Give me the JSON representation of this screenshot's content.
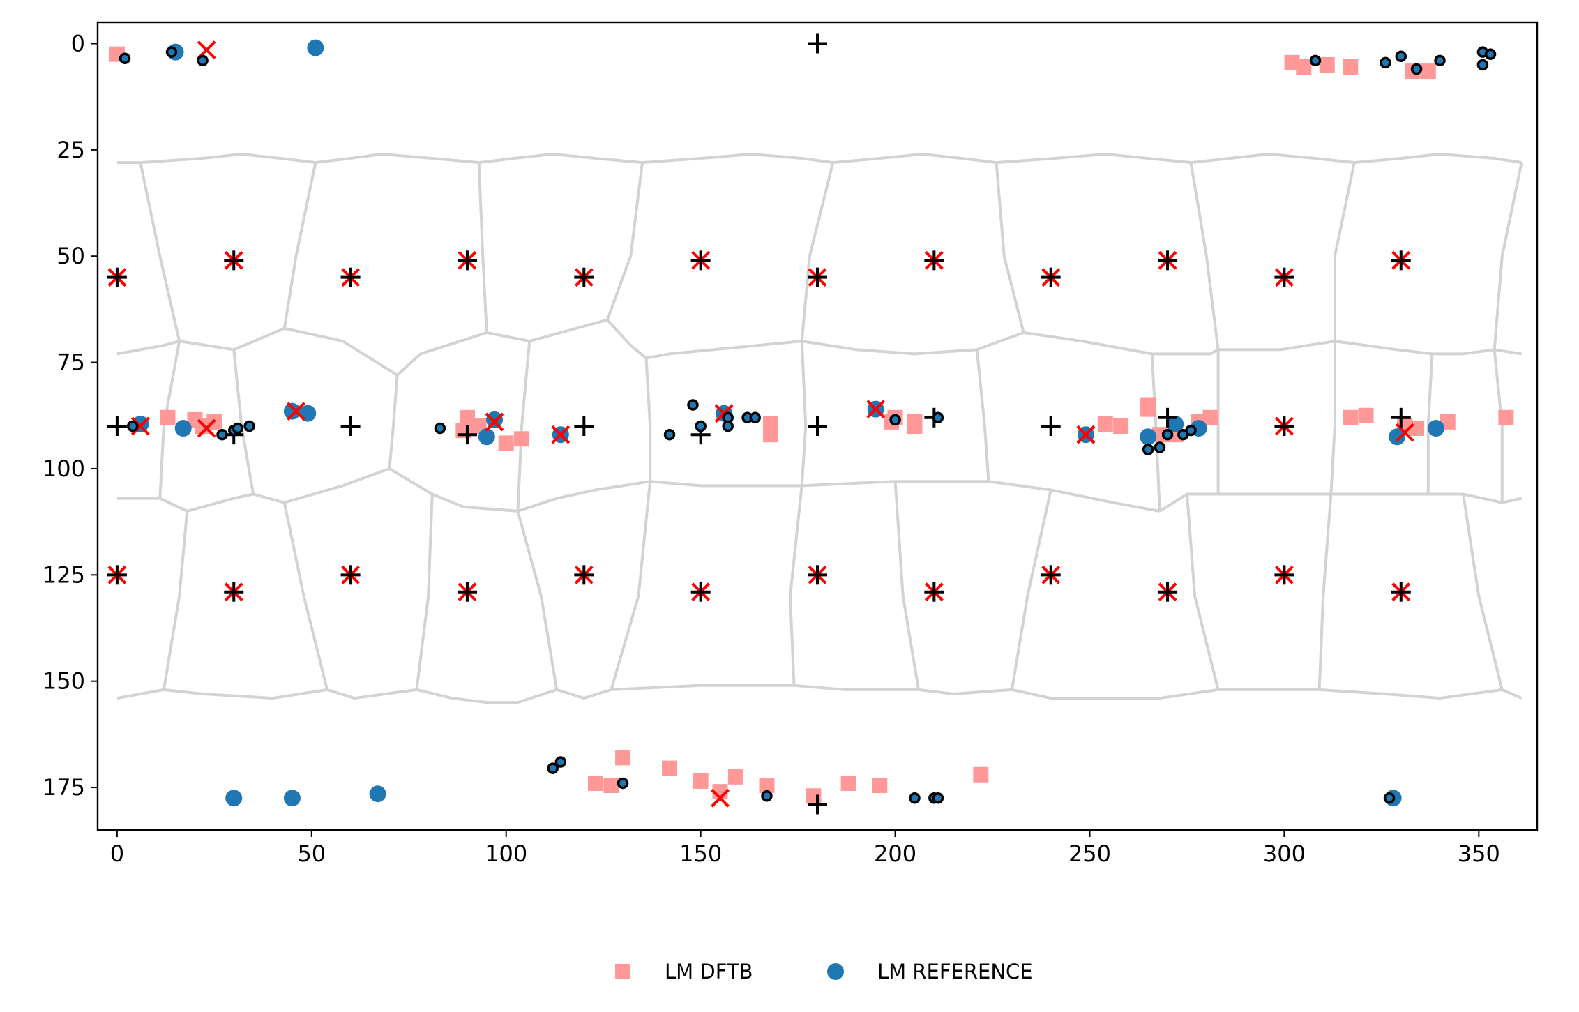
{
  "chart_data": {
    "type": "scatter",
    "title": "",
    "xlabel": "",
    "ylabel": "",
    "xlim": [
      -5,
      365
    ],
    "ylim": [
      185,
      -5
    ],
    "y_inverted": true,
    "x_ticks": [
      0,
      50,
      100,
      150,
      200,
      250,
      300,
      350
    ],
    "y_ticks": [
      0,
      25,
      50,
      75,
      100,
      125,
      150,
      175
    ],
    "grid": false,
    "legend_position": "bottom-center",
    "colors": {
      "lm_dftb": "#ff9896",
      "lm_reference": "#1f77b4",
      "ts_dftb": "#ff0000",
      "ts_reference": "#000000",
      "voronoi_edges": "#d3d3d3",
      "path_dot_edge": "#000000",
      "path_dot_fill": "#1f77b4"
    },
    "legend": [
      {
        "key": "lm_dftb",
        "label": "LM DFTB",
        "marker": "square"
      },
      {
        "key": "lm_reference",
        "label": "LM REFERENCE",
        "marker": "circle"
      }
    ],
    "series": [
      {
        "key": "lm_dftb",
        "marker": "square",
        "points": [
          [
            0,
            2.5
          ],
          [
            302,
            4.5
          ],
          [
            305,
            5.5
          ],
          [
            311,
            5
          ],
          [
            317,
            5.5
          ],
          [
            333,
            6.5
          ],
          [
            337,
            6.5
          ],
          [
            13,
            88
          ],
          [
            20,
            88.5
          ],
          [
            22,
            90
          ],
          [
            25,
            89
          ],
          [
            89,
            91
          ],
          [
            90,
            88
          ],
          [
            93,
            90
          ],
          [
            100,
            94
          ],
          [
            104,
            93
          ],
          [
            168,
            89.5
          ],
          [
            168,
            92
          ],
          [
            200,
            88
          ],
          [
            199,
            89
          ],
          [
            205,
            89
          ],
          [
            205,
            90
          ],
          [
            254,
            89.5
          ],
          [
            258,
            90
          ],
          [
            265,
            85
          ],
          [
            265,
            86
          ],
          [
            268,
            92
          ],
          [
            272,
            92
          ],
          [
            278,
            89
          ],
          [
            281,
            88
          ],
          [
            317,
            88
          ],
          [
            321,
            87.5
          ],
          [
            331,
            90
          ],
          [
            334,
            90.5
          ],
          [
            342,
            89
          ],
          [
            357,
            88
          ],
          [
            123,
            174
          ],
          [
            127,
            174.5
          ],
          [
            130,
            168
          ],
          [
            142,
            170.5
          ],
          [
            150,
            173.5
          ],
          [
            155,
            176
          ],
          [
            159,
            172.5
          ],
          [
            167,
            174.5
          ],
          [
            179,
            177
          ],
          [
            188,
            174
          ],
          [
            196,
            174.5
          ],
          [
            222,
            172
          ]
        ]
      },
      {
        "key": "lm_reference",
        "marker": "circle",
        "points": [
          [
            15,
            2
          ],
          [
            51,
            1
          ],
          [
            6,
            89.5
          ],
          [
            17,
            90.5
          ],
          [
            45,
            86.5
          ],
          [
            49,
            87
          ],
          [
            95,
            92.5
          ],
          [
            97,
            88.5
          ],
          [
            114,
            92
          ],
          [
            156,
            87
          ],
          [
            195,
            86
          ],
          [
            249,
            92
          ],
          [
            265,
            92.5
          ],
          [
            272,
            89.5
          ],
          [
            278,
            90.5
          ],
          [
            329,
            92.5
          ],
          [
            339,
            90.5
          ],
          [
            30,
            177.5
          ],
          [
            45,
            177.5
          ],
          [
            67,
            176.5
          ],
          [
            328,
            177.5
          ]
        ]
      },
      {
        "key": "ts_dftb",
        "marker": "x",
        "points": [
          [
            23,
            1.5
          ],
          [
            0,
            55
          ],
          [
            30,
            51
          ],
          [
            60,
            55
          ],
          [
            90,
            51
          ],
          [
            120,
            55
          ],
          [
            150,
            51
          ],
          [
            180,
            55
          ],
          [
            210,
            51
          ],
          [
            240,
            55
          ],
          [
            270,
            51
          ],
          [
            300,
            55
          ],
          [
            330,
            51
          ],
          [
            6,
            90
          ],
          [
            23,
            90.5
          ],
          [
            46,
            86.5
          ],
          [
            97,
            89
          ],
          [
            114,
            92
          ],
          [
            156,
            87
          ],
          [
            195,
            86
          ],
          [
            249,
            92
          ],
          [
            300,
            90
          ],
          [
            331,
            91.5
          ],
          [
            0,
            125
          ],
          [
            30,
            129
          ],
          [
            60,
            125
          ],
          [
            90,
            129
          ],
          [
            120,
            125
          ],
          [
            150,
            129
          ],
          [
            180,
            125
          ],
          [
            210,
            129
          ],
          [
            240,
            125
          ],
          [
            270,
            129
          ],
          [
            300,
            125
          ],
          [
            330,
            129
          ],
          [
            155,
            177.5
          ]
        ]
      },
      {
        "key": "ts_reference",
        "marker": "plus",
        "points": [
          [
            180,
            0
          ],
          [
            0,
            55
          ],
          [
            30,
            51
          ],
          [
            60,
            55
          ],
          [
            90,
            51
          ],
          [
            120,
            55
          ],
          [
            150,
            51
          ],
          [
            180,
            55
          ],
          [
            210,
            51
          ],
          [
            240,
            55
          ],
          [
            270,
            51
          ],
          [
            300,
            55
          ],
          [
            330,
            51
          ],
          [
            0,
            90
          ],
          [
            30,
            92
          ],
          [
            60,
            90
          ],
          [
            90,
            92
          ],
          [
            120,
            90
          ],
          [
            150,
            92
          ],
          [
            180,
            90
          ],
          [
            210,
            88
          ],
          [
            240,
            90
          ],
          [
            270,
            88
          ],
          [
            300,
            90
          ],
          [
            330,
            88
          ],
          [
            0,
            125
          ],
          [
            30,
            129
          ],
          [
            60,
            125
          ],
          [
            90,
            129
          ],
          [
            120,
            125
          ],
          [
            150,
            129
          ],
          [
            180,
            125
          ],
          [
            210,
            129
          ],
          [
            240,
            125
          ],
          [
            270,
            129
          ],
          [
            300,
            125
          ],
          [
            330,
            129
          ],
          [
            180,
            179
          ]
        ]
      },
      {
        "key": "path_points",
        "marker": "small-circle",
        "points": [
          [
            2,
            3.5
          ],
          [
            14,
            2
          ],
          [
            22,
            4
          ],
          [
            308,
            4
          ],
          [
            326,
            4.5
          ],
          [
            330,
            3
          ],
          [
            334,
            6
          ],
          [
            340,
            4
          ],
          [
            351,
            2
          ],
          [
            353,
            2.5
          ],
          [
            351,
            5
          ],
          [
            4,
            90
          ],
          [
            27,
            92
          ],
          [
            30,
            91
          ],
          [
            31,
            90.5
          ],
          [
            34,
            90
          ],
          [
            83,
            90.5
          ],
          [
            148,
            85
          ],
          [
            150,
            90
          ],
          [
            157,
            88
          ],
          [
            157,
            90
          ],
          [
            162,
            88
          ],
          [
            164,
            88
          ],
          [
            142,
            92
          ],
          [
            200,
            88.5
          ],
          [
            211,
            88
          ],
          [
            265,
            95.5
          ],
          [
            268,
            95
          ],
          [
            270,
            92
          ],
          [
            274,
            92
          ],
          [
            276,
            91
          ],
          [
            112,
            170.5
          ],
          [
            114,
            169
          ],
          [
            130,
            174
          ],
          [
            167,
            177
          ],
          [
            205,
            177.5
          ],
          [
            210,
            177.5
          ],
          [
            211,
            177.5
          ],
          [
            327,
            177.5
          ]
        ]
      }
    ]
  }
}
